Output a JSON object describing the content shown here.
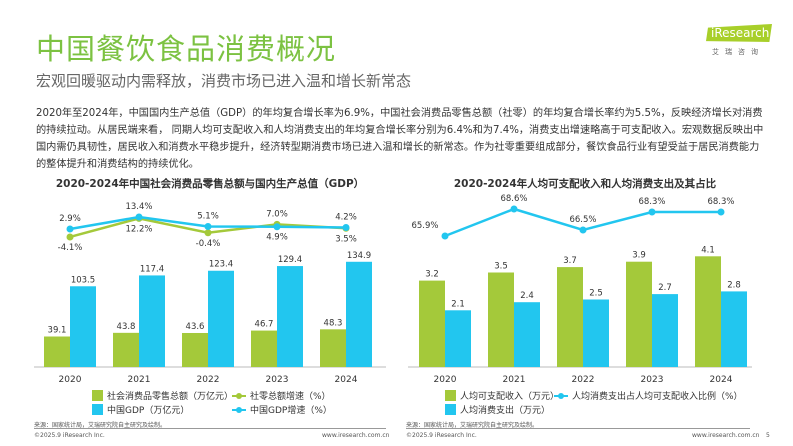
{
  "header": {
    "title": "中国餐饮食品消费概况",
    "subtitle": "宏观回暖驱动内需释放，消费市场已进入温和增长新常态",
    "logo_text": "iResearch",
    "logo_cn": "艾瑞咨询"
  },
  "body_text": "2020年至2024年，中国国内生产总值（GDP）的年均复合增长率为6.9%，中国社会消费品零售总额（社零）的年均复合增长率约为5.5%，反映经济增长对消费的持续拉动。从居民端来看， 同期人均可支配收入和人均消费支出的年均复合增长率分别为6.4%和为7.4%，消费支出增速略高于可支配收入。宏观数据反映出中国内需仍具韧性，居民收入和消费水平稳步提升，经济转型期消费市场已进入温和增长的新常态。作为社零重要组成部分，餐饮食品行业有望受益于居民消费能力的整体提升和消费结构的持续优化。",
  "colors": {
    "green": "#a4c93a",
    "blue": "#22c6ef",
    "title": "#7cc242"
  },
  "chart_data": [
    {
      "type": "bar+line",
      "title": "2020-2024年中国社会消费品零售总额与国内生产总值（GDP）",
      "categories": [
        "2020",
        "2021",
        "2022",
        "2023",
        "2024"
      ],
      "series": [
        {
          "name": "社会消费品零售总额（万亿元）",
          "kind": "bar",
          "color": "#a4c93a",
          "values": [
            39.1,
            43.8,
            43.6,
            46.7,
            48.3
          ]
        },
        {
          "name": "中国GDP（万亿元）",
          "kind": "bar",
          "color": "#22c6ef",
          "values": [
            103.5,
            117.4,
            123.4,
            129.4,
            134.9
          ]
        },
        {
          "name": "社零总额增速（%）",
          "kind": "line",
          "color": "#a4c93a",
          "values": [
            -4.1,
            12.2,
            -0.4,
            7.0,
            3.5
          ],
          "labels": [
            "-4.1%",
            "12.2%",
            "-0.4%",
            "7.0%",
            "3.5%"
          ]
        },
        {
          "name": "中国GDP增速（%）",
          "kind": "line",
          "color": "#22c6ef",
          "values": [
            2.9,
            13.4,
            5.1,
            4.9,
            4.2
          ],
          "labels": [
            "2.9%",
            "13.4%",
            "5.1%",
            "4.9%",
            "4.2%"
          ]
        }
      ]
    },
    {
      "type": "bar+line",
      "title": "2020-2024年人均可支配收入和人均消费支出及其占比",
      "categories": [
        "2020",
        "2021",
        "2022",
        "2023",
        "2024"
      ],
      "series": [
        {
          "name": "人均可支配收入（万元）",
          "kind": "bar",
          "color": "#a4c93a",
          "values": [
            3.2,
            3.5,
            3.7,
            3.9,
            4.1
          ]
        },
        {
          "name": "人均消费支出（万元）",
          "kind": "bar",
          "color": "#22c6ef",
          "values": [
            2.1,
            2.4,
            2.5,
            2.7,
            2.8
          ]
        },
        {
          "name": "人均消费支出占人均可支配收入比例（%）",
          "kind": "line",
          "color": "#22c6ef",
          "values": [
            65.9,
            68.6,
            66.5,
            68.3,
            68.3
          ],
          "labels": [
            "65.9%",
            "68.6%",
            "66.5%",
            "68.3%",
            "68.3%"
          ]
        }
      ]
    }
  ],
  "footer": {
    "source": "来源：国家统计局，艾瑞研究院自主研究及绘制。",
    "copyright": "©2025.9 iResearch Inc.",
    "url": "www.iresearch.com.cn",
    "page": "5"
  }
}
